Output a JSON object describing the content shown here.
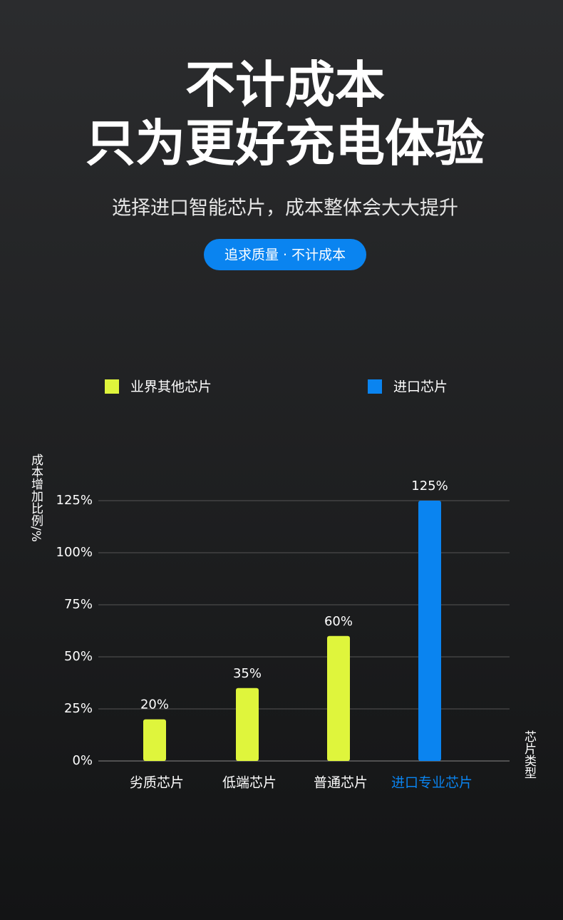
{
  "header": {
    "title_lines": [
      "不计成本",
      "只为更好充电体验"
    ],
    "subtitle": "选择进口智能芯片，成本整体会大大提升",
    "badge": "追求质量 · 不计成本"
  },
  "chart_data": {
    "type": "bar",
    "y_label": "成本增加比例/%",
    "x_label": "芯片类型",
    "categories": [
      "劣质芯片",
      "低端芯片",
      "普通芯片",
      "进口专业芯片"
    ],
    "series": [
      {
        "name": "业界其他芯片",
        "color": "#dff53c",
        "values": [
          20,
          35,
          60,
          null
        ],
        "value_labels": [
          "20%",
          "35%",
          "60%",
          null
        ]
      },
      {
        "name": "进口芯片",
        "color": "#0a84f0",
        "values": [
          null,
          null,
          null,
          125
        ],
        "value_labels": [
          null,
          null,
          null,
          "125%"
        ]
      }
    ],
    "ylim": [
      0,
      125
    ],
    "yticks": [
      {
        "value": 0,
        "label": "0%"
      },
      {
        "value": 25,
        "label": "25%"
      },
      {
        "value": 50,
        "label": "50%"
      },
      {
        "value": 75,
        "label": "75%"
      },
      {
        "value": 100,
        "label": "100%"
      },
      {
        "value": 125,
        "label": "125%"
      }
    ],
    "grid": true
  }
}
